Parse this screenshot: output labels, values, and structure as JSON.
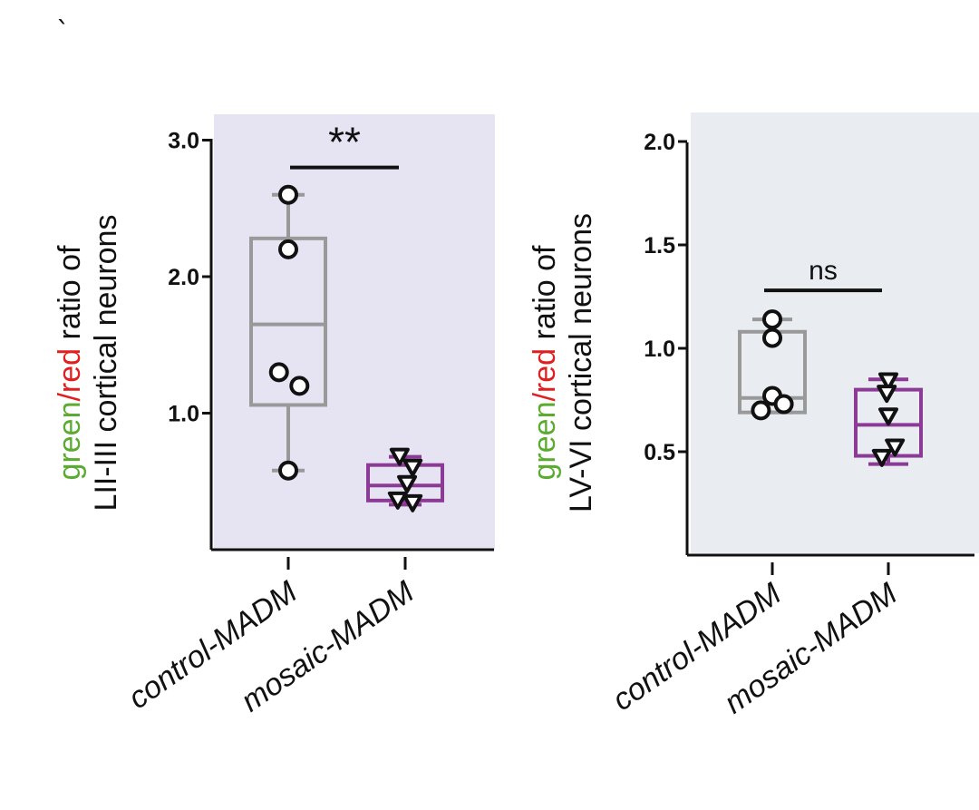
{
  "stray_mark": "`",
  "colors": {
    "green": "#5aab2f",
    "red": "#e02020",
    "control": "#999999",
    "mosaic": "#8b3a96",
    "panel1_bg": "#e6e3f3",
    "panel2_bg": "#e9edf2",
    "marker_edge": "#111111"
  },
  "chart_data": [
    {
      "type": "box",
      "panel_background": "lavender",
      "ylabel": {
        "line1_parts": [
          {
            "text": "green",
            "color": "#5aab2f"
          },
          {
            "text": "/red",
            "color": "#e02020"
          },
          {
            "text": " ratio of",
            "color": "#111111"
          }
        ],
        "line2": "LII-III cortical neurons"
      },
      "ylim": [
        0,
        3.0
      ],
      "yticks": [
        1.0,
        2.0,
        3.0
      ],
      "ytick_labels": [
        "1.0",
        "2.0",
        "3.0"
      ],
      "categories": [
        "control-MADM",
        "mosaic-MADM"
      ],
      "series": [
        {
          "category": "control-MADM",
          "marker": "circle",
          "color": "#999999",
          "whisker_low": 0.58,
          "q1": 1.06,
          "median": 1.65,
          "q3": 2.28,
          "whisker_high": 2.6,
          "points": [
            2.6,
            2.2,
            1.3,
            1.2,
            0.58
          ],
          "jitter": [
            0,
            0,
            -0.25,
            0.3,
            0
          ]
        },
        {
          "category": "mosaic-MADM",
          "marker": "triangle-down",
          "color": "#8b3a96",
          "whisker_low": 0.33,
          "q1": 0.36,
          "median": 0.47,
          "q3": 0.62,
          "whisker_high": 0.68,
          "points": [
            0.68,
            0.6,
            0.48,
            0.36,
            0.34
          ],
          "jitter": [
            -0.15,
            0.2,
            0.05,
            -0.2,
            0.2
          ]
        }
      ],
      "significance": {
        "label": "**",
        "value": 2.8
      }
    },
    {
      "type": "box",
      "panel_background": "light gray-blue",
      "ylabel": {
        "line1_parts": [
          {
            "text": "green",
            "color": "#5aab2f"
          },
          {
            "text": "/red",
            "color": "#e02020"
          },
          {
            "text": " ratio of",
            "color": "#111111"
          }
        ],
        "line2": "LV-VI cortical neurons"
      },
      "ylim": [
        0,
        2.0
      ],
      "yticks": [
        0.5,
        1.0,
        1.5,
        2.0
      ],
      "ytick_labels": [
        "0.5",
        "1.0",
        "1.5",
        "2.0"
      ],
      "categories": [
        "control-MADM",
        "mosaic-MADM"
      ],
      "series": [
        {
          "category": "control-MADM",
          "marker": "circle",
          "color": "#999999",
          "whisker_low": 0.69,
          "q1": 0.69,
          "median": 0.76,
          "q3": 1.08,
          "whisker_high": 1.14,
          "points": [
            1.14,
            1.05,
            0.77,
            0.73,
            0.7
          ],
          "jitter": [
            0,
            0,
            0,
            0.35,
            -0.35
          ]
        },
        {
          "category": "mosaic-MADM",
          "marker": "triangle-down",
          "color": "#8b3a96",
          "whisker_low": 0.44,
          "q1": 0.48,
          "median": 0.63,
          "q3": 0.8,
          "whisker_high": 0.85,
          "points": [
            0.84,
            0.78,
            0.67,
            0.52,
            0.47
          ],
          "jitter": [
            0,
            -0.05,
            0,
            0.2,
            -0.2
          ]
        }
      ],
      "significance": {
        "label": "ns",
        "value": 1.28
      }
    }
  ]
}
